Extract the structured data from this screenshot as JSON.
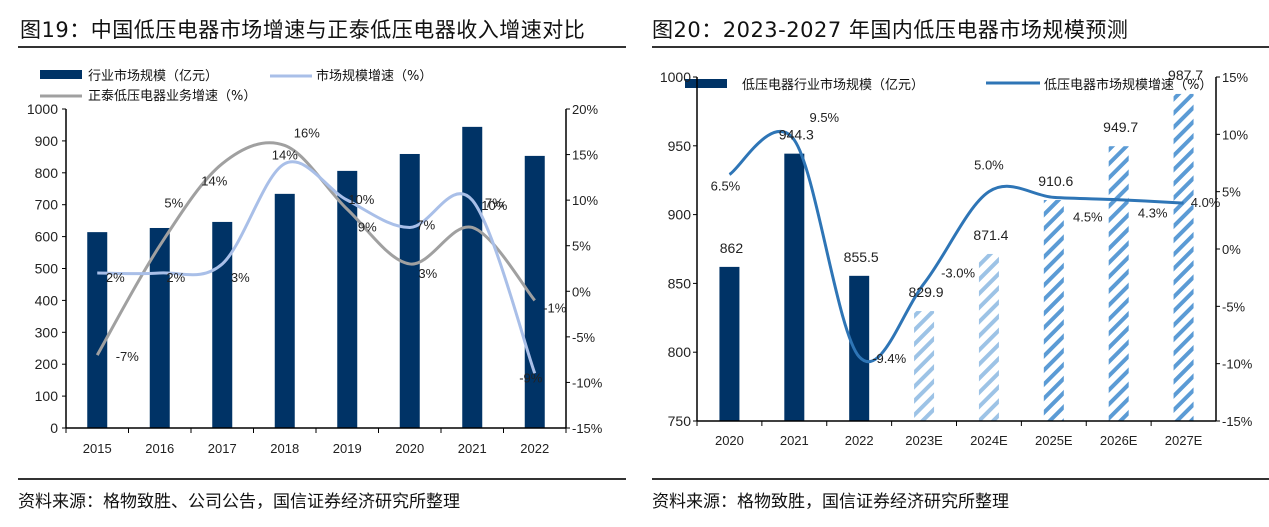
{
  "chart_data": [
    {
      "id": "fig19",
      "type": "bar",
      "title": "图19：中国低压电器市场增速与正泰低压电器收入增速对比",
      "categories": [
        "2015",
        "2016",
        "2017",
        "2018",
        "2019",
        "2020",
        "2021",
        "2022"
      ],
      "series": [
        {
          "name": "行业市场规模（亿元）",
          "type": "bar",
          "axis": "left",
          "color": "#003366",
          "values": [
            614,
            627,
            646,
            734,
            806,
            859,
            944,
            853
          ]
        },
        {
          "name": "市场规模增速（%）",
          "type": "line",
          "axis": "right",
          "color": "#a9bfe8",
          "values": [
            2,
            2,
            3,
            14,
            10,
            7,
            10,
            -9
          ],
          "labels": [
            "2%",
            "2%",
            "3%",
            "14%",
            "10%",
            "7%",
            "10%",
            "-9%"
          ]
        },
        {
          "name": "正泰低压电器业务增速（%）",
          "type": "line",
          "axis": "right",
          "color": "#a0a0a0",
          "values": [
            -7,
            5,
            14,
            16,
            9,
            3,
            7,
            -1
          ],
          "labels": [
            "-7%",
            "5%",
            "14%",
            "16%",
            "9%",
            "3%",
            "7%",
            "-1%"
          ]
        }
      ],
      "ylim_left": [
        0,
        1000
      ],
      "yticks_left": [
        "0",
        "100",
        "200",
        "300",
        "400",
        "500",
        "600",
        "700",
        "800",
        "900",
        "1000"
      ],
      "ylim_right": [
        -15,
        20
      ],
      "yticks_right": [
        "-15%",
        "-10%",
        "-5%",
        "0%",
        "5%",
        "10%",
        "15%",
        "20%"
      ],
      "xlabel": "",
      "ylabel": "",
      "grid": false,
      "legend": "top",
      "source": "资料来源：格物致胜、公司公告，国信证券经济研究所整理"
    },
    {
      "id": "fig20",
      "type": "bar",
      "title": "图20：2023-2027 年国内低压电器市场规模预测",
      "categories": [
        "2020",
        "2021",
        "2022",
        "2023E",
        "2024E",
        "2025E",
        "2026E",
        "2027E"
      ],
      "series": [
        {
          "name": "低压电器行业市场规模（亿元）",
          "type": "bar",
          "axis": "left",
          "color": "#003366",
          "values": [
            862,
            944.3,
            855.5,
            829.9,
            871.4,
            910.6,
            949.7,
            987.7
          ],
          "labels": [
            "862",
            "944.3",
            "855.5",
            "829.9",
            "871.4",
            "910.6",
            "949.7",
            "987.7"
          ],
          "forecast": [
            false,
            false,
            false,
            true,
            true,
            true,
            true,
            true
          ],
          "forecast_colors": [
            "#9dc3e6",
            "#9dc3e6",
            "#5b9bd5",
            "#5b9bd5",
            "#5b9bd5"
          ]
        },
        {
          "name": "低压电器市场规模增速（%）",
          "type": "line",
          "axis": "right",
          "color": "#2e75b6",
          "values": [
            6.5,
            9.5,
            -9.4,
            -3.0,
            5.0,
            4.5,
            4.3,
            4.0
          ],
          "labels": [
            "6.5%",
            "9.5%",
            "-9.4%",
            "-3.0%",
            "5.0%",
            "4.5%",
            "4.3%",
            "4.0%"
          ]
        }
      ],
      "ylim_left": [
        750,
        1000
      ],
      "yticks_left": [
        "750",
        "800",
        "850",
        "900",
        "950",
        "1000"
      ],
      "ylim_right": [
        -15,
        15
      ],
      "yticks_right": [
        "-15%",
        "-10%",
        "-5%",
        "0%",
        "5%",
        "10%",
        "15%"
      ],
      "xlabel": "",
      "ylabel": "",
      "grid": false,
      "legend": "top",
      "source": "资料来源：格物致胜，国信证券经济研究所整理"
    }
  ]
}
